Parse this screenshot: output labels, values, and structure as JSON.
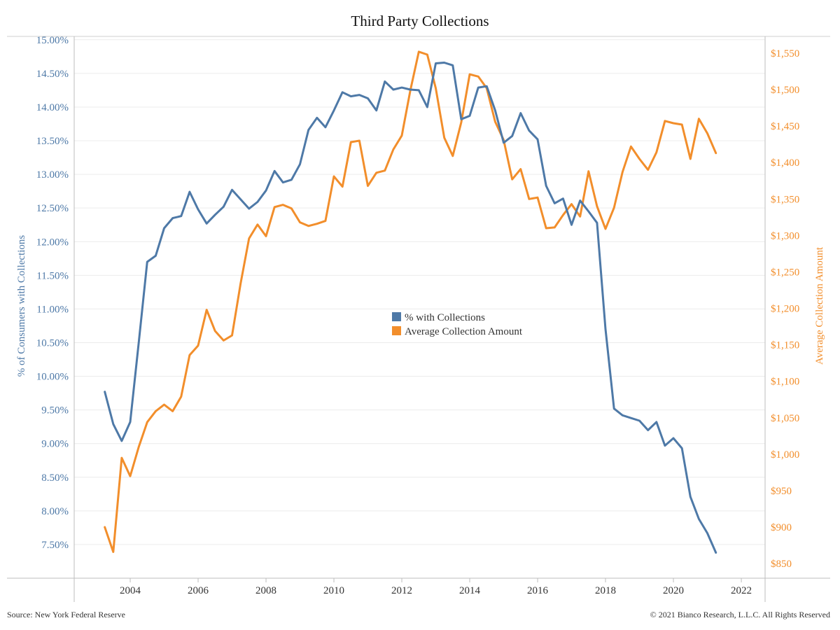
{
  "chart_data": {
    "type": "line",
    "title": "Third Party Collections",
    "y_left_label": "% of Consumers with Collections",
    "y_right_label": "Average Collection Amount",
    "x_ticks": [
      "2004",
      "2006",
      "2008",
      "2010",
      "2012",
      "2014",
      "2016",
      "2018",
      "2020",
      "2022"
    ],
    "y_left_ticks": [
      "7.50%",
      "8.00%",
      "8.50%",
      "9.00%",
      "9.50%",
      "10.00%",
      "10.50%",
      "11.00%",
      "11.50%",
      "12.00%",
      "12.50%",
      "13.00%",
      "13.50%",
      "14.00%",
      "14.50%",
      "15.00%"
    ],
    "y_right_ticks": [
      "$850",
      "$900",
      "$950",
      "$1,000",
      "$1,050",
      "$1,100",
      "$1,150",
      "$1,200",
      "$1,250",
      "$1,300",
      "$1,350",
      "$1,400",
      "$1,450",
      "$1,500",
      "$1,550"
    ],
    "x_range": [
      2002.35,
      2022.7
    ],
    "y_left_range": [
      7.0,
      15.05
    ],
    "y_right_range": [
      830,
      1573
    ],
    "grid": true,
    "legend_position": "center",
    "series": [
      {
        "name": "% with Collections",
        "axis": "left",
        "color": "#4e79a7",
        "x": [
          2003.25,
          2003.5,
          2003.75,
          2004.0,
          2004.25,
          2004.5,
          2004.75,
          2005.0,
          2005.25,
          2005.5,
          2005.75,
          2006.0,
          2006.25,
          2006.5,
          2006.75,
          2007.0,
          2007.25,
          2007.5,
          2007.75,
          2008.0,
          2008.25,
          2008.5,
          2008.75,
          2009.0,
          2009.25,
          2009.5,
          2009.75,
          2010.0,
          2010.25,
          2010.5,
          2010.75,
          2011.0,
          2011.25,
          2011.5,
          2011.75,
          2012.0,
          2012.25,
          2012.5,
          2012.75,
          2013.0,
          2013.25,
          2013.5,
          2013.75,
          2014.0,
          2014.25,
          2014.5,
          2014.75,
          2015.0,
          2015.25,
          2015.5,
          2015.75,
          2016.0,
          2016.25,
          2016.5,
          2016.75,
          2017.0,
          2017.25,
          2017.5,
          2017.75,
          2018.0,
          2018.25,
          2018.5,
          2018.75,
          2019.0,
          2019.25,
          2019.5,
          2019.75,
          2020.0,
          2020.25,
          2020.5,
          2020.75,
          2021.0,
          2021.25
        ],
        "values": [
          9.77,
          9.29,
          9.04,
          9.32,
          10.5,
          11.7,
          11.79,
          12.2,
          12.35,
          12.38,
          12.74,
          12.48,
          12.27,
          12.4,
          12.52,
          12.77,
          12.63,
          12.49,
          12.59,
          12.76,
          13.05,
          12.88,
          12.92,
          13.15,
          13.66,
          13.84,
          13.7,
          13.95,
          14.22,
          14.16,
          14.18,
          14.13,
          13.95,
          14.38,
          14.26,
          14.29,
          14.26,
          14.25,
          14.0,
          14.65,
          14.66,
          14.62,
          13.82,
          13.87,
          14.29,
          14.31,
          13.95,
          13.47,
          13.57,
          13.91,
          13.65,
          13.52,
          12.83,
          12.57,
          12.64,
          12.25,
          12.61,
          12.45,
          12.28,
          10.7,
          9.52,
          9.42,
          9.38,
          9.34,
          9.2,
          9.32,
          8.97,
          9.08,
          8.93,
          8.21,
          7.88,
          7.67,
          7.38
        ]
      },
      {
        "name": "Average Collection Amount",
        "axis": "right",
        "color": "#f28e2b",
        "x": [
          2003.25,
          2003.5,
          2003.75,
          2004.0,
          2004.25,
          2004.5,
          2004.75,
          2005.0,
          2005.25,
          2005.5,
          2005.75,
          2006.0,
          2006.25,
          2006.5,
          2006.75,
          2007.0,
          2007.25,
          2007.5,
          2007.75,
          2008.0,
          2008.25,
          2008.5,
          2008.75,
          2009.0,
          2009.25,
          2009.5,
          2009.75,
          2010.0,
          2010.25,
          2010.5,
          2010.75,
          2011.0,
          2011.25,
          2011.5,
          2011.75,
          2012.0,
          2012.25,
          2012.5,
          2012.75,
          2013.0,
          2013.25,
          2013.5,
          2013.75,
          2014.0,
          2014.25,
          2014.5,
          2014.75,
          2015.0,
          2015.25,
          2015.5,
          2015.75,
          2016.0,
          2016.25,
          2016.5,
          2016.75,
          2017.0,
          2017.25,
          2017.5,
          2017.75,
          2018.0,
          2018.25,
          2018.5,
          2018.75,
          2019.0,
          2019.25,
          2019.5,
          2019.75,
          2020.0,
          2020.25,
          2020.5,
          2020.75,
          2021.0,
          2021.25
        ],
        "values": [
          900,
          866,
          995,
          970,
          1010,
          1044,
          1059,
          1068,
          1059,
          1079,
          1136,
          1149,
          1198,
          1169,
          1156,
          1163,
          1234,
          1296,
          1315,
          1299,
          1339,
          1342,
          1337,
          1318,
          1313,
          1316,
          1320,
          1381,
          1367,
          1428,
          1430,
          1368,
          1386,
          1389,
          1418,
          1437,
          1499,
          1552,
          1548,
          1502,
          1434,
          1409,
          1455,
          1521,
          1518,
          1502,
          1456,
          1431,
          1377,
          1391,
          1350,
          1352,
          1310,
          1311,
          1328,
          1343,
          1326,
          1388,
          1340,
          1309,
          1338,
          1387,
          1422,
          1405,
          1390,
          1414,
          1457,
          1454,
          1452,
          1405,
          1460,
          1440,
          1413
        ]
      }
    ],
    "source": "Source: New York Federal Reserve",
    "copyright": "© 2021 Bianco Research, L.L.C. All Rights Reserved"
  }
}
